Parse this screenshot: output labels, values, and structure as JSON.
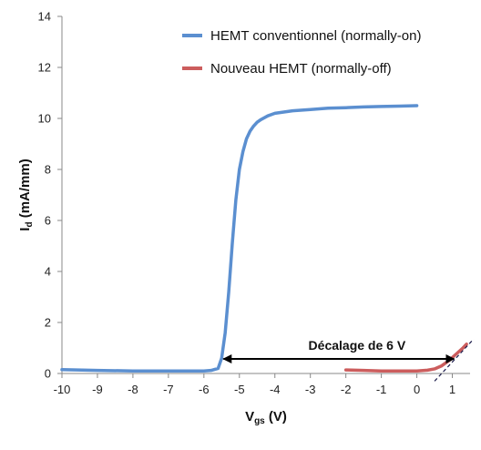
{
  "chart_data": {
    "type": "line",
    "xlabel_main": "V",
    "xlabel_sub": "gs",
    "xlabel_unit": " (V)",
    "ylabel_main": "I",
    "ylabel_sub": "d",
    "ylabel_unit": " (mA/mm)",
    "xlim": [
      -10,
      1.5
    ],
    "ylim": [
      0,
      14
    ],
    "xticks": [
      -10,
      -9,
      -8,
      -7,
      -6,
      -5,
      -4,
      -3,
      -2,
      -1,
      0,
      1
    ],
    "yticks": [
      0,
      2,
      4,
      6,
      8,
      10,
      12,
      14
    ],
    "legend_position": "top-right",
    "series": [
      {
        "name": "HEMT conventionnel (normally-on)",
        "color": "#5B8FD0",
        "x": [
          -10,
          -9,
          -8,
          -7,
          -6,
          -5.8,
          -5.6,
          -5.5,
          -5.4,
          -5.3,
          -5.2,
          -5.1,
          -5.0,
          -4.9,
          -4.8,
          -4.7,
          -4.6,
          -4.5,
          -4.4,
          -4.2,
          -4.0,
          -3.5,
          -3.0,
          -2.5,
          -2.0,
          -1.5,
          -1.0,
          -0.5,
          0
        ],
        "y": [
          0.15,
          0.12,
          0.1,
          0.1,
          0.1,
          0.12,
          0.2,
          0.6,
          1.6,
          3.2,
          5.1,
          6.8,
          8.0,
          8.7,
          9.2,
          9.5,
          9.7,
          9.85,
          9.95,
          10.1,
          10.2,
          10.3,
          10.35,
          10.4,
          10.42,
          10.45,
          10.47,
          10.48,
          10.5
        ]
      },
      {
        "name": "Nouveau HEMT (normally-off)",
        "color": "#CC5D5D",
        "x": [
          -2,
          -1.5,
          -1,
          -0.5,
          0,
          0.3,
          0.5,
          0.7,
          0.9,
          1.1,
          1.3,
          1.4
        ],
        "y": [
          0.14,
          0.12,
          0.1,
          0.1,
          0.1,
          0.13,
          0.18,
          0.3,
          0.5,
          0.75,
          1.0,
          1.15
        ]
      }
    ],
    "annotation": {
      "text": "Décalage de 6 V",
      "from_x": -5.5,
      "to_x": 1.1,
      "y": 0.5
    },
    "tangent": {
      "x1": 0.5,
      "y1": -0.3,
      "x2": 1.6,
      "y2": 1.35
    }
  }
}
